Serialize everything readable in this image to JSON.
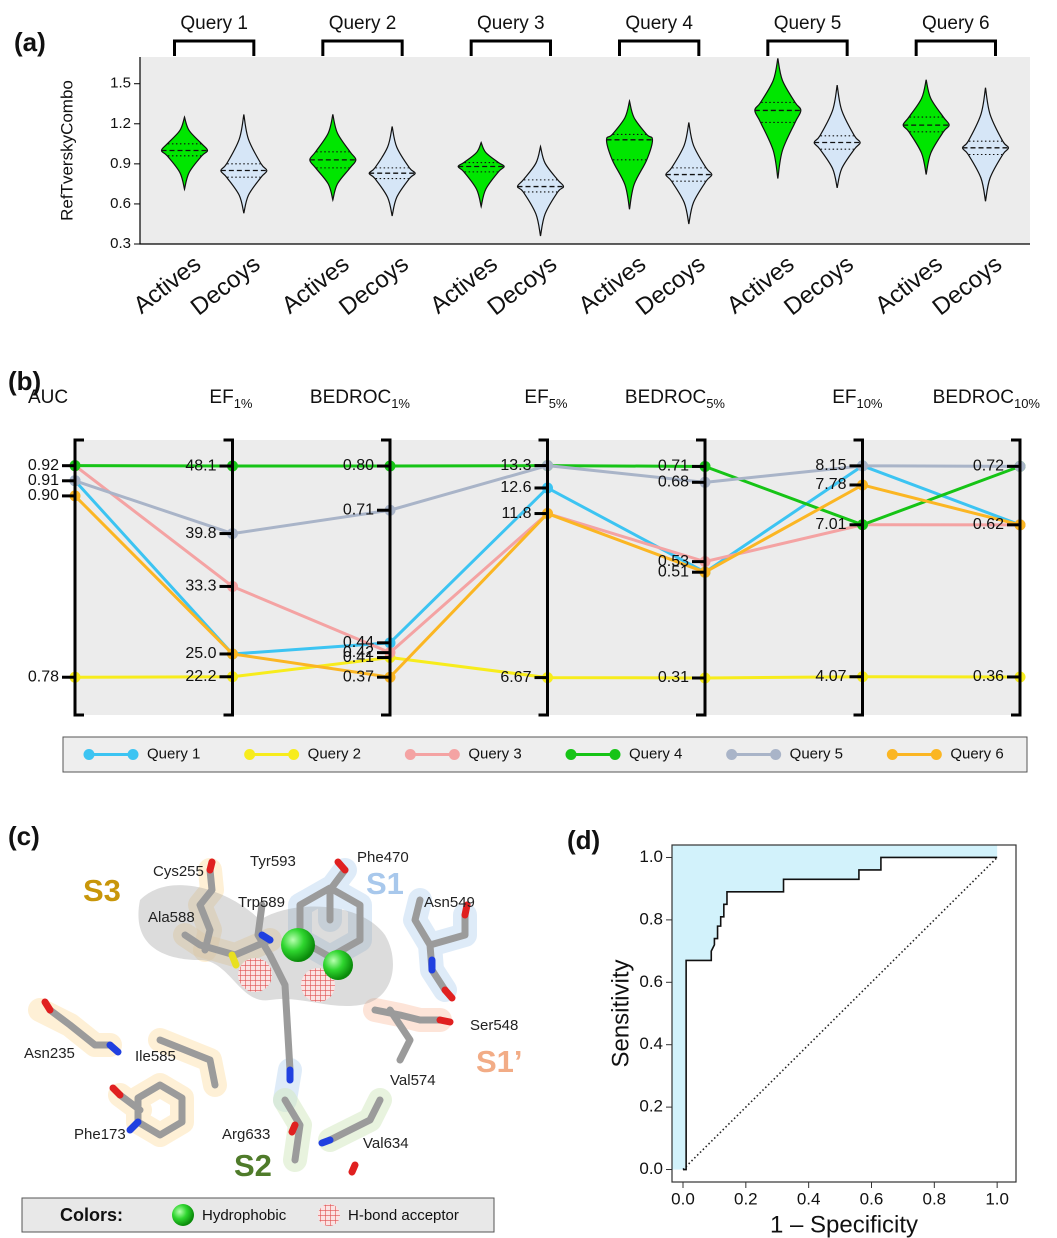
{
  "panel_labels": [
    "(a)",
    "(b)",
    "(c)",
    "(d)"
  ],
  "chart_data": [
    {
      "type": "violin",
      "y_label": "RefTverskyCombo",
      "groups": [
        "Query 1",
        "Query 2",
        "Query 3",
        "Query 4",
        "Query 5",
        "Query 6"
      ],
      "categories": [
        "Actives",
        "Decoys",
        "Actives",
        "Decoys",
        "Actives",
        "Decoys",
        "Actives",
        "Decoys",
        "Actives",
        "Decoys",
        "Actives",
        "Decoys"
      ],
      "colors": [
        "#00e600",
        "#d6e6f7",
        "#00e600",
        "#d6e6f7",
        "#00e600",
        "#d6e6f7",
        "#00e600",
        "#d6e6f7",
        "#00e600",
        "#d6e6f7",
        "#00e600",
        "#d6e6f7"
      ],
      "min": [
        0.71,
        0.53,
        0.63,
        0.51,
        0.58,
        0.36,
        0.56,
        0.45,
        0.79,
        0.72,
        0.82,
        0.62
      ],
      "q1": [
        0.96,
        0.8,
        0.87,
        0.79,
        0.84,
        0.69,
        0.93,
        0.77,
        1.21,
        1.01,
        1.14,
        0.97
      ],
      "median": [
        1.0,
        0.85,
        0.93,
        0.83,
        0.88,
        0.73,
        1.08,
        0.82,
        1.3,
        1.06,
        1.19,
        1.02
      ],
      "q3": [
        1.05,
        0.9,
        0.99,
        0.87,
        0.91,
        0.78,
        1.12,
        0.87,
        1.36,
        1.11,
        1.25,
        1.07
      ],
      "max": [
        1.25,
        1.27,
        1.27,
        1.18,
        1.06,
        1.03,
        1.37,
        1.21,
        1.69,
        1.49,
        1.53,
        1.47
      ],
      "ylim": [
        0.3,
        1.7
      ],
      "yticks": [
        0.3,
        0.6,
        0.9,
        1.2,
        1.5
      ]
    },
    {
      "type": "parallel",
      "axes": [
        {
          "name": "AUC",
          "lim": [
            0.755,
            0.937
          ],
          "ticks": [
            0.92,
            0.91,
            {
              "value": 0.9,
              "label": "0.90"
            },
            0.78
          ]
        },
        {
          "name": "EF",
          "sub": "1%",
          "lim": [
            17.5,
            51.3
          ],
          "ticks": [
            48.1,
            39.8,
            33.3,
            {
              "value": 25,
              "label": "25.0"
            },
            22.2
          ]
        },
        {
          "name": "BEDROC",
          "sub": "1%",
          "lim": [
            0.293,
            0.853
          ],
          "ticks": [
            {
              "value": 0.8,
              "label": "0.80"
            },
            0.71,
            0.44,
            0.42,
            0.41,
            0.37
          ]
        },
        {
          "name": "EF",
          "sub": "5%",
          "lim": [
            5.5,
            14.1
          ],
          "ticks": [
            13.3,
            12.6,
            11.8,
            6.67
          ]
        },
        {
          "name": "BEDROC",
          "sub": "5%",
          "lim": [
            0.24,
            0.76
          ],
          "ticks": [
            0.71,
            0.68,
            0.53,
            0.51,
            0.31
          ]
        },
        {
          "name": "EF",
          "sub": "10%",
          "lim": [
            3.33,
            8.65
          ],
          "ticks": [
            8.15,
            7.78,
            7.01,
            4.07
          ]
        },
        {
          "name": "BEDROC",
          "sub": "10%",
          "lim": [
            0.295,
            0.765
          ],
          "ticks": [
            0.72,
            0.62,
            0.36
          ]
        }
      ],
      "series": [
        {
          "name": "Query 1",
          "color": "#3cc4f2",
          "values": [
            0.91,
            25,
            0.44,
            12.6,
            0.51,
            8.15,
            0.62
          ]
        },
        {
          "name": "Query 2",
          "color": "#f7ec1c",
          "values": [
            0.78,
            22.2,
            0.41,
            6.67,
            0.31,
            4.07,
            0.36
          ]
        },
        {
          "name": "Query 3",
          "color": "#f4a3a3",
          "values": [
            0.92,
            33.3,
            0.42,
            11.8,
            0.53,
            7.01,
            0.62
          ]
        },
        {
          "name": "Query 4",
          "color": "#16c416",
          "values": [
            0.92,
            48.1,
            0.8,
            13.3,
            0.71,
            7.01,
            0.72
          ]
        },
        {
          "name": "Query 5",
          "color": "#a9b4c8",
          "values": [
            0.91,
            39.8,
            0.71,
            13.3,
            0.68,
            8.15,
            0.72
          ]
        },
        {
          "name": "Query 6",
          "color": "#fbb623",
          "values": [
            0.9,
            25,
            0.37,
            11.8,
            0.51,
            7.78,
            0.62
          ]
        }
      ],
      "legend": "bottom"
    },
    {
      "type": "line",
      "x_label": "1 – Specificity",
      "y_label": "Sensitivity",
      "color": "#111",
      "fill": "#d2f2fb",
      "x": [
        0,
        0.01,
        0.01,
        0.01,
        0.09,
        0.09,
        0.1,
        0.1,
        0.11,
        0.11,
        0.12,
        0.12,
        0.13,
        0.13,
        0.14,
        0.14,
        0.32,
        0.32,
        0.56,
        0.56,
        0.63,
        0.63,
        1.0
      ],
      "values": [
        0,
        0,
        0.37,
        0.67,
        0.67,
        0.7,
        0.72,
        0.74,
        0.74,
        0.78,
        0.78,
        0.81,
        0.81,
        0.85,
        0.85,
        0.89,
        0.89,
        0.93,
        0.93,
        0.96,
        0.96,
        1.0,
        1.0
      ],
      "xlim": [
        -0.035,
        1.06
      ],
      "ylim": [
        -0.04,
        1.04
      ],
      "xticks": [
        {
          "value": 0,
          "label": "0.0"
        },
        0.2,
        0.4,
        0.6,
        0.8,
        {
          "value": 1,
          "label": "1.0"
        }
      ],
      "yticks": [
        {
          "value": 0,
          "label": "0.0"
        },
        0.2,
        0.4,
        0.6,
        0.8,
        {
          "value": 1,
          "label": "1.0"
        }
      ]
    }
  ],
  "structure": {
    "residues": [
      "Tyr593",
      "Phe470",
      "Cys255",
      "Trp589",
      "Asn549",
      "Ala588",
      "Ser548",
      "Asn235",
      "Ile585",
      "Val574",
      "Phe173",
      "Arg633",
      "Val634"
    ],
    "pockets": [
      "S1",
      "S3",
      "S1’",
      "S2"
    ],
    "legend": {
      "title": "Colors:",
      "items": [
        "Hydrophobic",
        "H-bond acceptor"
      ]
    }
  }
}
